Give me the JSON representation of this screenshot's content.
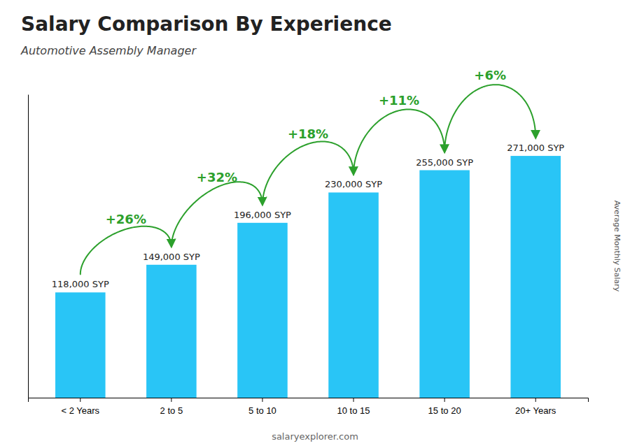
{
  "chart_data": {
    "type": "bar",
    "title": "Salary Comparison By Experience",
    "subtitle": "Automotive Assembly Manager",
    "categories": [
      "< 2 Years",
      "2 to 5",
      "5 to 10",
      "10 to 15",
      "15 to 20",
      "20+ Years"
    ],
    "values": [
      118000,
      149000,
      196000,
      230000,
      255000,
      271000
    ],
    "value_labels": [
      "118,000 SYP",
      "149,000 SYP",
      "196,000 SYP",
      "230,000 SYP",
      "255,000 SYP",
      "271,000 SYP"
    ],
    "data_labels": true,
    "color": "#29C5F6",
    "annotations": [
      "+26%",
      "+32%",
      "+18%",
      "+11%",
      "+6%"
    ],
    "y_label": "Average Monthly Salary",
    "source": "salaryexplorer.com",
    "ylim": [
      0,
      340000
    ],
    "tick_labels": "x",
    "grid": false
  }
}
